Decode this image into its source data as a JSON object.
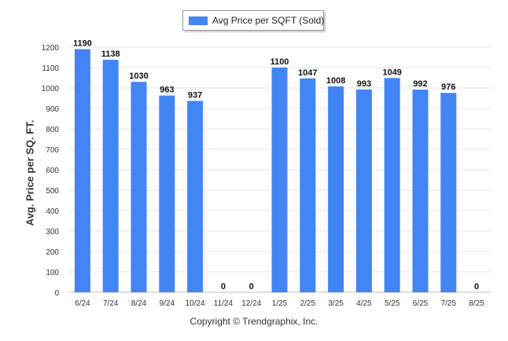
{
  "chart_data": {
    "type": "bar",
    "categories": [
      "6/24",
      "7/24",
      "8/24",
      "9/24",
      "10/24",
      "11/24",
      "12/24",
      "1/25",
      "2/25",
      "3/25",
      "4/25",
      "5/25",
      "6/25",
      "7/25",
      "8/25"
    ],
    "series": [
      {
        "name": "Avg Price per SQFT (Sold)",
        "values": [
          1190,
          1138,
          1030,
          963,
          937,
          0,
          0,
          1100,
          1047,
          1008,
          993,
          1049,
          992,
          976,
          0
        ]
      }
    ],
    "ylabel": "Avg. Price per SQ. FT.",
    "xlabel": "",
    "ylim": [
      0,
      1200
    ],
    "yticks": [
      0,
      100,
      200,
      300,
      400,
      500,
      600,
      700,
      800,
      900,
      1000,
      1100,
      1200
    ],
    "legend_position": "top-center",
    "grid": true,
    "bar_color": "#4285f4"
  },
  "footer": {
    "copyright": "Copyright © Trendgraphix, Inc."
  }
}
